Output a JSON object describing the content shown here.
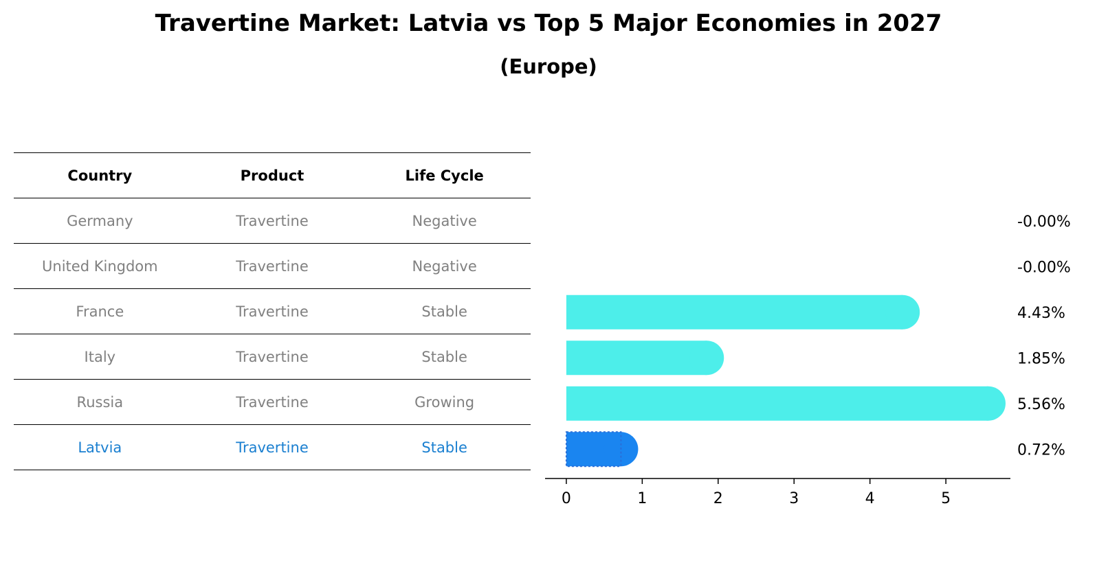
{
  "chart_data": {
    "type": "bar",
    "orientation": "horizontal",
    "title": "Travertine Market: Latvia vs Top 5 Major Economies in 2027",
    "subtitle": "(Europe)",
    "table": {
      "headers": [
        "Country",
        "Product",
        "Life Cycle"
      ],
      "rows": [
        [
          "Germany",
          "Travertine",
          "Negative"
        ],
        [
          "United Kingdom",
          "Travertine",
          "Negative"
        ],
        [
          "France",
          "Travertine",
          "Stable"
        ],
        [
          "Italy",
          "Travertine",
          "Stable"
        ],
        [
          "Russia",
          "Travertine",
          "Growing"
        ],
        [
          "Latvia",
          "Travertine",
          "Stable"
        ]
      ],
      "highlight_row": 5
    },
    "categories": [
      "Germany",
      "United Kingdom",
      "France",
      "Italy",
      "Russia",
      "Latvia"
    ],
    "values": [
      -0.0,
      -0.0,
      4.43,
      1.85,
      5.56,
      0.72
    ],
    "value_labels": [
      "-0.00%",
      "-0.00%",
      "4.43%",
      "1.85%",
      "5.56%",
      "0.72%"
    ],
    "xlim": [
      -0.28,
      5.85
    ],
    "xticks": [
      0,
      1,
      2,
      3,
      4,
      5
    ],
    "xlabel": "",
    "ylabel": "",
    "colors": {
      "default": "#4deeea",
      "highlight": "#1a85f0",
      "highlight_edge": "#2a6fd8"
    }
  }
}
